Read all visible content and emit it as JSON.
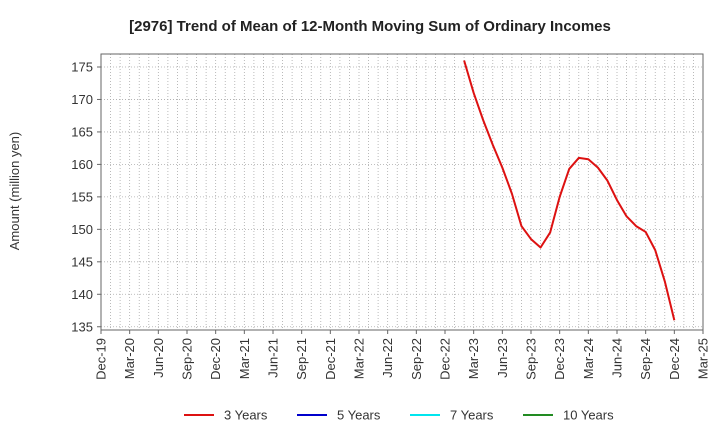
{
  "chart_data": {
    "type": "line",
    "title": "[2976]  Trend of Mean of 12-Month Moving Sum of Ordinary Incomes",
    "ylabel": "Amount (million yen)",
    "xlabel": "",
    "ylim": [
      134.5,
      177
    ],
    "yticks": [
      135,
      140,
      145,
      150,
      155,
      160,
      165,
      170,
      175
    ],
    "xlim": [
      "2019-12",
      "2025-03"
    ],
    "xticks": [
      "Dec-19",
      "Mar-20",
      "Jun-20",
      "Sep-20",
      "Dec-20",
      "Mar-21",
      "Jun-21",
      "Sep-21",
      "Dec-21",
      "Mar-22",
      "Jun-22",
      "Sep-22",
      "Dec-22",
      "Mar-23",
      "Jun-23",
      "Sep-23",
      "Dec-23",
      "Mar-24",
      "Jun-24",
      "Sep-24",
      "Dec-24",
      "Mar-25"
    ],
    "grid": true,
    "legend_position": "bottom",
    "series": [
      {
        "name": "3 Years",
        "color": "#dd1111",
        "x": [
          "2023-02",
          "2023-03",
          "2023-04",
          "2023-05",
          "2023-06",
          "2023-07",
          "2023-08",
          "2023-09",
          "2023-10",
          "2023-11",
          "2023-12",
          "2024-01",
          "2024-02",
          "2024-03",
          "2024-04",
          "2024-05",
          "2024-06",
          "2024-07",
          "2024-08",
          "2024-09",
          "2024-10",
          "2024-11",
          "2024-12"
        ],
        "values": [
          176.0,
          171.0,
          166.8,
          163.0,
          159.5,
          155.5,
          150.5,
          148.5,
          147.2,
          149.5,
          155.0,
          159.3,
          161.0,
          160.8,
          159.5,
          157.5,
          154.5,
          152.0,
          150.5,
          149.6,
          146.8,
          142.0,
          136.0
        ]
      },
      {
        "name": "5 Years",
        "color": "#0000cc",
        "x": [],
        "values": []
      },
      {
        "name": "7 Years",
        "color": "#00e5ee",
        "x": [],
        "values": []
      },
      {
        "name": "10 Years",
        "color": "#228b22",
        "x": [],
        "values": []
      }
    ]
  }
}
